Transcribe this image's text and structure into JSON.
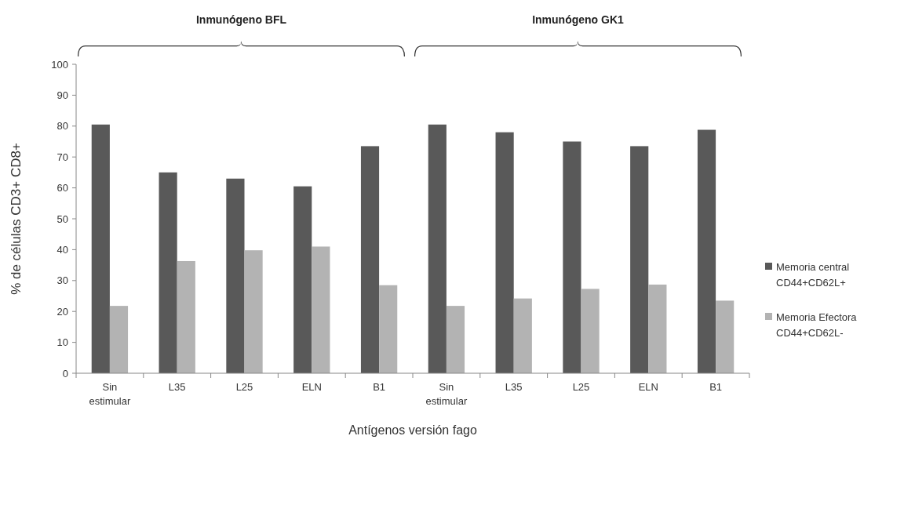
{
  "chart_data": {
    "type": "bar",
    "ylabel": "% de células CD3+ CD8+",
    "xlabel": "Antígenos versión fago",
    "annotations": [
      "Inmunógeno BFL",
      "Inmunógeno GK1"
    ],
    "categories": [
      "Sin estimular",
      "L35",
      "L25",
      "ELN",
      "B1",
      "Sin estimular",
      "L35",
      "L25",
      "ELN",
      "B1"
    ],
    "series": [
      {
        "name": "Memoria central CD44+CD62L+",
        "color": "#595959",
        "values": [
          80.5,
          65,
          63,
          60.5,
          73.5,
          80.5,
          78,
          75,
          73.5,
          78.8
        ]
      },
      {
        "name": "Memoria Efectora CD44+CD62L-",
        "color": "#b3b3b3",
        "values": [
          21.8,
          36.3,
          39.8,
          41,
          28.5,
          21.8,
          24.2,
          27.3,
          28.7,
          23.5
        ]
      }
    ],
    "ylim": [
      0,
      100
    ],
    "yticks": [
      0,
      10,
      20,
      30,
      40,
      50,
      60,
      70,
      80,
      90,
      100
    ],
    "legend": "right"
  }
}
